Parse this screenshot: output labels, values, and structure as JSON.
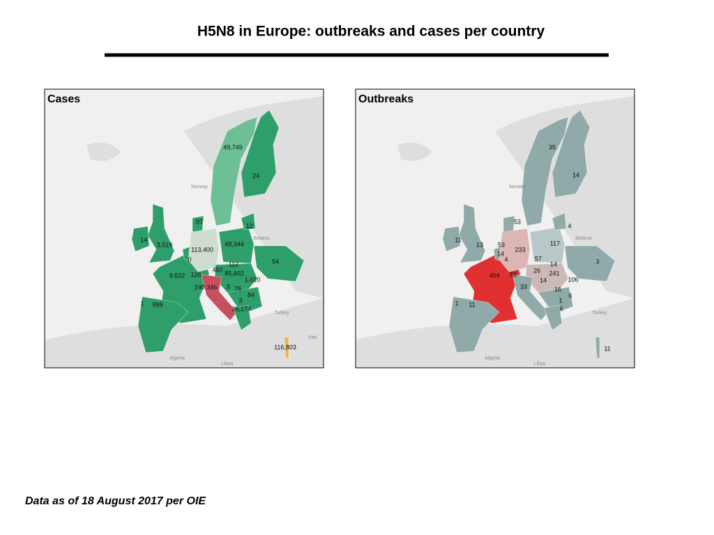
{
  "title": "H5N8 in Europe: outbreaks and cases per country",
  "maps": [
    {
      "title": "Cases",
      "labels": [
        "49,749",
        "24",
        "12",
        "97",
        "14",
        "3,519",
        "113,400",
        "48,344",
        "0",
        "54",
        "112",
        "450",
        "85,602",
        "9,622",
        "126",
        "1,010",
        "240,346",
        "3",
        "76",
        "84",
        "1",
        "999",
        "3",
        "29,174",
        "116,803"
      ],
      "places": [
        "Norway",
        "Belarus",
        "Turkey",
        "Iraq",
        "Algeria",
        "Libya"
      ]
    },
    {
      "title": "Outbreaks",
      "labels": [
        "35",
        "14",
        "53",
        "4",
        "11",
        "13",
        "53",
        "233",
        "117",
        "14",
        "4",
        "57",
        "3",
        "14",
        "26",
        "241",
        "404",
        "88",
        "106",
        "14",
        "33",
        "16",
        "6",
        "1",
        "1",
        "11",
        "6",
        "11"
      ],
      "places": [
        "Norway",
        "Belarus",
        "Turkey",
        "Algeria",
        "Libya"
      ]
    }
  ],
  "footer": "Data as of 18 August 2017 per OIE"
}
